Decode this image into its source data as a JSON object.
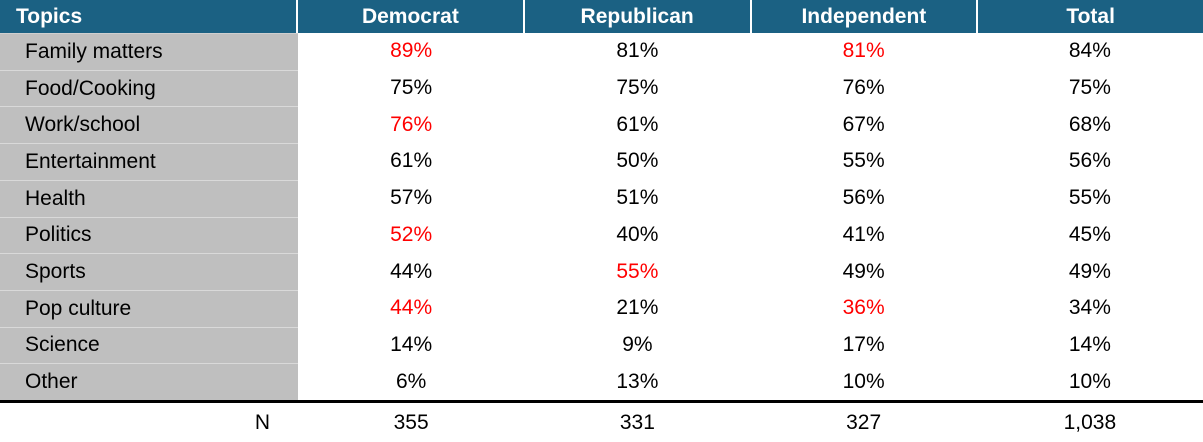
{
  "colors": {
    "header_bg": "#1B6183",
    "header_text": "#FFFFFF",
    "topic_column_bg": "#BFBFBF",
    "row_divider": "#D9D9D9",
    "highlight_red": "#FF0000",
    "body_text": "#000000",
    "footer_rule": "#000000"
  },
  "chart_data": {
    "type": "table",
    "columns": [
      "Topics",
      "Democrat",
      "Republican",
      "Independent",
      "Total"
    ],
    "rows": [
      [
        "Family matters",
        "89%",
        "81%",
        "81%",
        "84%"
      ],
      [
        "Food/Cooking",
        "75%",
        "75%",
        "76%",
        "75%"
      ],
      [
        "Work/school",
        "76%",
        "61%",
        "67%",
        "68%"
      ],
      [
        "Entertainment",
        "61%",
        "50%",
        "55%",
        "56%"
      ],
      [
        "Health",
        "57%",
        "51%",
        "56%",
        "55%"
      ],
      [
        "Politics",
        "52%",
        "40%",
        "41%",
        "45%"
      ],
      [
        "Sports",
        "44%",
        "55%",
        "49%",
        "49%"
      ],
      [
        "Pop culture",
        "44%",
        "21%",
        "36%",
        "34%"
      ],
      [
        "Science",
        "14%",
        "9%",
        "17%",
        "14%"
      ],
      [
        "Other",
        "6%",
        "13%",
        "10%",
        "10%"
      ]
    ],
    "footer_row": [
      "N",
      "355",
      "331",
      "327",
      "1,038"
    ],
    "red_cells": [
      [
        0,
        1
      ],
      [
        0,
        3
      ],
      [
        2,
        1
      ],
      [
        5,
        1
      ],
      [
        6,
        2
      ],
      [
        7,
        1
      ],
      [
        7,
        3
      ]
    ],
    "legend_note_red_means": "highlighted value",
    "grid": "topic column shaded gray, black rule above N row"
  }
}
